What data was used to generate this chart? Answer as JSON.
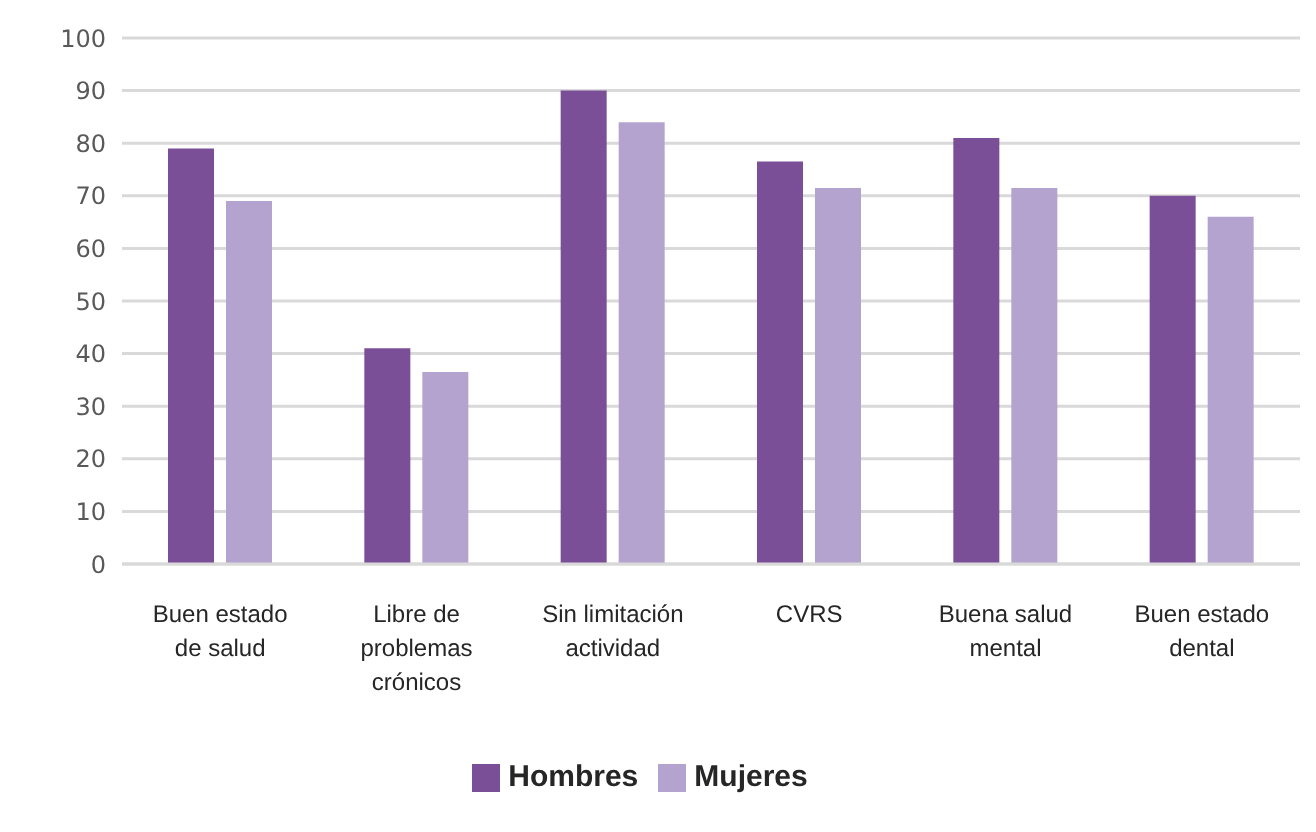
{
  "chart_data": {
    "type": "bar",
    "categories": [
      "Buen estado de salud",
      "Libre de problemas crónicos",
      "Sin limitación actividad",
      "CVRS",
      "Buena salud mental",
      "Buen estado dental"
    ],
    "series": [
      {
        "name": "Hombres",
        "color": "#7b4f97",
        "values": [
          79,
          41,
          90,
          76.5,
          81,
          70
        ]
      },
      {
        "name": "Mujeres",
        "color": "#b5a3cf",
        "values": [
          69,
          36.5,
          84,
          71.5,
          71.5,
          66
        ]
      }
    ],
    "ylim": [
      0,
      100
    ],
    "yticks": [
      0,
      10,
      20,
      30,
      40,
      50,
      60,
      70,
      80,
      90,
      100
    ],
    "grid": "y",
    "legend": "bottom"
  }
}
